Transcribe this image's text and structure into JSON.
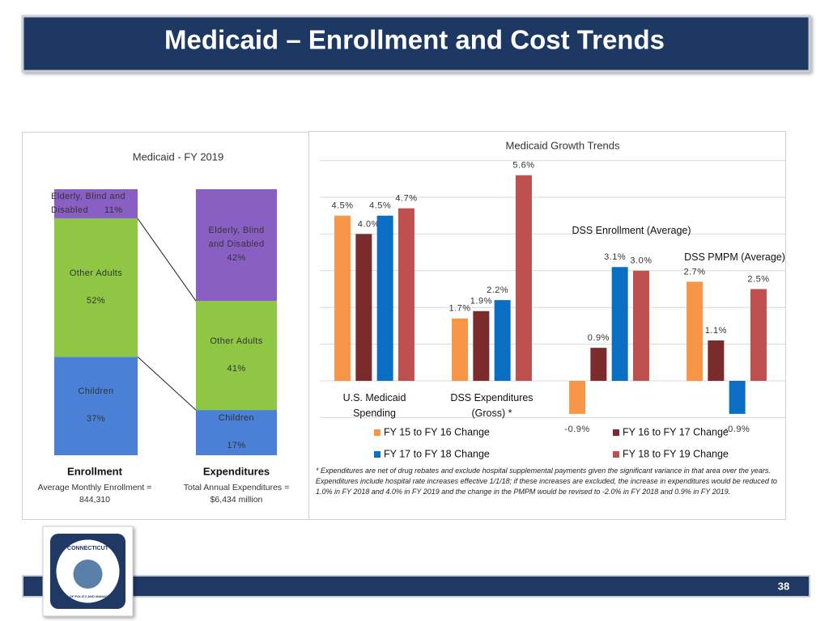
{
  "header": {
    "title": "Medicaid – Enrollment and Cost Trends"
  },
  "chart_data": [
    {
      "type": "stacked_bar",
      "title": "Medicaid - FY 2019",
      "categories": [
        "Enrollment",
        "Expenditures"
      ],
      "captions": [
        "Average Monthly Enrollment = 844,310",
        "Total Annual Expenditures = $6,434 million"
      ],
      "ylim": [
        0,
        100
      ],
      "series": [
        {
          "name": "Children",
          "color": "#4a80d6",
          "values": [
            37,
            17
          ],
          "value_labels": [
            "37%",
            "17%"
          ]
        },
        {
          "name": "Other Adults",
          "color": "#8fc644",
          "values": [
            52,
            41
          ],
          "value_labels": [
            "52%",
            "41%"
          ]
        },
        {
          "name": "Elderly, Blind and Disabled",
          "color": "#8a5fc4",
          "values": [
            11,
            42
          ],
          "value_labels": [
            "11%",
            "42%"
          ]
        }
      ]
    },
    {
      "type": "bar",
      "title": "Medicaid Growth Trends",
      "categories": [
        "U.S. Medicaid Spending",
        "DSS Expenditures (Gross) *",
        "DSS Enrollment (Average)",
        "DSS PMPM (Average)"
      ],
      "ylim": [
        -1,
        6
      ],
      "yticks": [
        -1,
        0,
        1,
        2,
        3,
        4,
        5,
        6
      ],
      "grid": true,
      "series": [
        {
          "name": "FY 15 to FY 16 Change",
          "color": "#f79646",
          "values": [
            4.5,
            1.7,
            -0.9,
            2.7
          ],
          "value_labels": [
            "4.5%",
            "1.7%",
            "-0.9%",
            "2.7%"
          ]
        },
        {
          "name": "FY 16 to FY 17 Change",
          "color": "#7b2b2b",
          "values": [
            4.0,
            1.9,
            0.9,
            1.1
          ],
          "value_labels": [
            "4.0%",
            "1.9%",
            "0.9%",
            "1.1%"
          ]
        },
        {
          "name": "FY 17 to FY 18 Change",
          "color": "#0a6fc2",
          "values": [
            4.5,
            2.2,
            3.1,
            -0.9
          ],
          "value_labels": [
            "4.5%",
            "2.2%",
            "3.1%",
            "-0.9%"
          ]
        },
        {
          "name": "FY 18 to FY 19 Change",
          "color": "#c0504d",
          "values": [
            4.7,
            5.6,
            3.0,
            2.5
          ],
          "value_labels": [
            "4.7%",
            "5.6%",
            "3.0%",
            "2.5%"
          ]
        }
      ],
      "footnote": "* Expenditures are net of drug rebates and exclude hospital supplemental payments given the significant variance in that area over the years.  Expenditures include hospital rate increases effective 1/1/18; if these increases are excluded, the increase in expenditures would be reduced to 1.0% in FY 2018 and 4.0% in FY 2019 and the change in the PMPM would be revised to -2.0% in FY 2018 and 0.9% in FY 2019."
    }
  ],
  "logo": {
    "top": "CONNECTICUT",
    "bottom": "OFFICE OF POLICY AND MANAGEMENT"
  },
  "footer": {
    "page_number": "38"
  }
}
